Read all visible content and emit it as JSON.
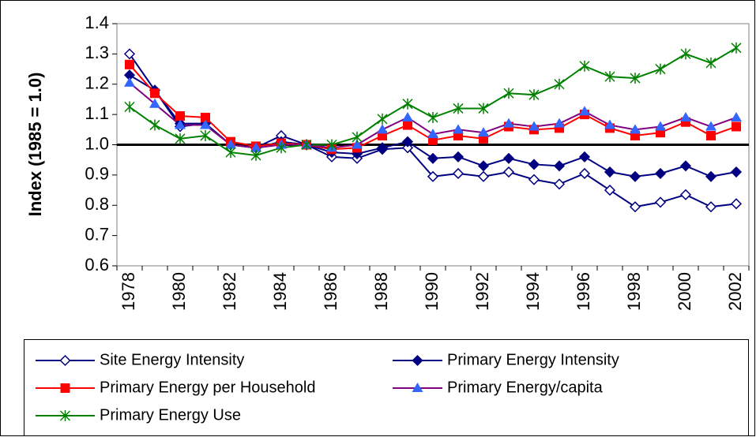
{
  "chart_data": {
    "type": "line",
    "y_label": "Index (1985 = 1.0)",
    "categories": [
      "1978",
      null,
      "1980",
      null,
      "1982",
      null,
      "1984",
      null,
      "1986",
      null,
      "1988",
      null,
      "1990",
      null,
      "1992",
      null,
      "1994",
      null,
      "1996",
      null,
      "1998",
      null,
      "2000",
      null,
      "2002"
    ],
    "series": [
      {
        "name": "Site Energy Intensity",
        "color": "#000080",
        "marker": "diamond-open",
        "values": [
          1.3,
          1.18,
          1.06,
          1.07,
          1.0,
          0.99,
          1.03,
          1.0,
          0.96,
          0.955,
          0.985,
          0.99,
          0.895,
          0.905,
          0.895,
          0.91,
          0.885,
          0.87,
          0.905,
          0.85,
          0.795,
          0.81,
          0.835,
          0.795,
          0.805
        ]
      },
      {
        "name": "Primary Energy Intensity",
        "color": "#000080",
        "marker": "diamond",
        "values": [
          1.23,
          1.18,
          1.07,
          1.07,
          1.0,
          0.99,
          1.01,
          1.0,
          0.975,
          0.97,
          0.99,
          1.01,
          0.955,
          0.96,
          0.93,
          0.955,
          0.935,
          0.93,
          0.96,
          0.91,
          0.895,
          0.905,
          0.93,
          0.895,
          0.91
        ]
      },
      {
        "name": "Primary Energy per Household",
        "color": "#ff0000",
        "marker": "square",
        "values": [
          1.265,
          1.17,
          1.095,
          1.09,
          1.01,
          0.995,
          1.005,
          1.0,
          0.985,
          0.99,
          1.03,
          1.065,
          1.015,
          1.03,
          1.02,
          1.06,
          1.05,
          1.055,
          1.1,
          1.055,
          1.03,
          1.04,
          1.075,
          1.03,
          1.06
        ]
      },
      {
        "name": "Primary Energy/capita",
        "color": "#800080",
        "marker_color": "#3366ff",
        "marker": "triangle",
        "values": [
          1.205,
          1.135,
          1.065,
          1.065,
          1.0,
          0.99,
          1.0,
          1.0,
          0.99,
          1.0,
          1.05,
          1.09,
          1.035,
          1.05,
          1.04,
          1.07,
          1.06,
          1.07,
          1.11,
          1.065,
          1.05,
          1.06,
          1.09,
          1.06,
          1.09
        ]
      },
      {
        "name": "Primary Energy Use",
        "color": "#008000",
        "marker": "star",
        "values": [
          1.125,
          1.065,
          1.02,
          1.03,
          0.975,
          0.965,
          0.99,
          1.0,
          1.0,
          1.025,
          1.085,
          1.135,
          1.09,
          1.12,
          1.12,
          1.17,
          1.165,
          1.2,
          1.26,
          1.225,
          1.22,
          1.25,
          1.3,
          1.27,
          1.32
        ]
      }
    ],
    "reference_line": 1.0,
    "ylim": [
      0.6,
      1.4
    ],
    "yticks": [
      {
        "value": 0.6,
        "label": "0.6"
      },
      {
        "value": 0.7,
        "label": "0.7"
      },
      {
        "value": 0.8,
        "label": "0.8"
      },
      {
        "value": 0.9,
        "label": "0.9"
      },
      {
        "value": 1.0,
        "label": "1.0"
      },
      {
        "value": 1.1,
        "label": "1.1"
      },
      {
        "value": 1.2,
        "label": "1.2"
      },
      {
        "value": 1.3,
        "label": "1.3"
      },
      {
        "value": 1.4,
        "label": "1.4"
      }
    ],
    "grid": false
  }
}
